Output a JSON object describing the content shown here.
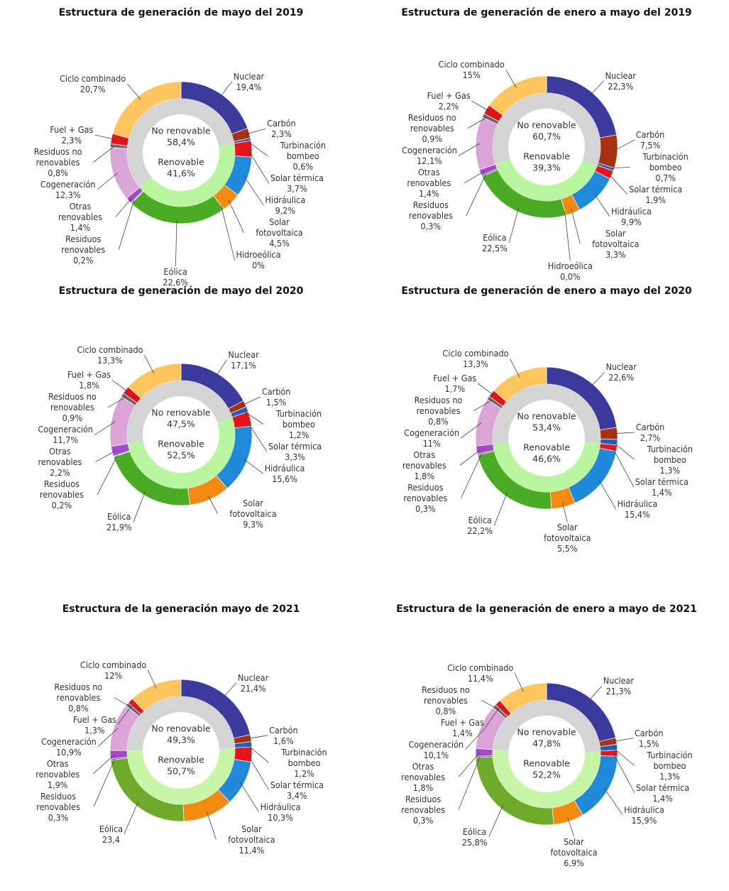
{
  "chart_data": [
    {
      "type": "donut",
      "title": "Estructura de generación de mayo del 2019",
      "categories": [
        "Nuclear",
        "Carbón",
        "Turbinación bombeo",
        "Solar térmica",
        "Hidráulica",
        "Solar fotovoltaica",
        "Hidroeólica",
        "Eólica",
        "Residuos renovables",
        "Otras renovables",
        "Cogeneración",
        "Residuos no renovables",
        "Fuel + Gas",
        "Ciclo combinado"
      ],
      "values": [
        19.4,
        2.3,
        0.6,
        3.7,
        9.2,
        4.5,
        0,
        22.6,
        0.2,
        1.4,
        12.3,
        0.8,
        2.3,
        20.7
      ],
      "value_labels": [
        "19,4%",
        "2,3%",
        "0,6%",
        "3,7%",
        "9,2%",
        "4,5%",
        "0%",
        "22,6%",
        "0,2%",
        "1,4%",
        "12,3%",
        "0,8%",
        "2,3%",
        "20,7%"
      ],
      "colors": [
        "#3d3a9e",
        "#a8320f",
        "#1d5fc9",
        "#e8141c",
        "#1f8ad8",
        "#f28a12",
        "#2e9fa0",
        "#4bab26",
        "#6a4aa3",
        "#a24ac8",
        "#dba4d6",
        "#666666",
        "#e0141c",
        "#fcc55e"
      ],
      "inner": {
        "categories": [
          "No renovable",
          "Renovable"
        ],
        "values": [
          58.4,
          41.6
        ],
        "value_labels": [
          "58,4%",
          "41,6%"
        ],
        "colors": [
          "#d4d4d4",
          "#baf5a0"
        ]
      }
    },
    {
      "type": "donut",
      "title": "Estructura de generación de enero a mayo del 2019",
      "categories": [
        "Nuclear",
        "Carbón",
        "Turbinación bombeo",
        "Solar térmica",
        "Hidráulica",
        "Solar fotovoltaica",
        "Hidroeólica",
        "Eólica",
        "Residuos renovables",
        "Otras renovables",
        "Cogeneración",
        "Residuos no renovables",
        "Fuel + Gas",
        "Ciclo combinado"
      ],
      "values": [
        22.3,
        7.5,
        0.7,
        1.9,
        9.9,
        3.3,
        0.0,
        22.5,
        0.3,
        1.4,
        12.1,
        0.9,
        2.2,
        15
      ],
      "value_labels": [
        "22,3%",
        "7,5%",
        "0,7%",
        "1,9%",
        "9,9%",
        "3,3%",
        "0,0%",
        "22,5%",
        "0,3%",
        "1,4%",
        "12,1%",
        "0,9%",
        "2,2%",
        "15%"
      ],
      "colors": [
        "#3d3a9e",
        "#a8320f",
        "#1d5fc9",
        "#e8141c",
        "#1f8ad8",
        "#f28a12",
        "#2e9fa0",
        "#4bab26",
        "#6a4aa3",
        "#a24ac8",
        "#dba4d6",
        "#666666",
        "#e0141c",
        "#fcc55e"
      ],
      "inner": {
        "categories": [
          "No renovable",
          "Renovable"
        ],
        "values": [
          60.7,
          39.3
        ],
        "value_labels": [
          "60,7%",
          "39,3%"
        ],
        "colors": [
          "#d4d4d4",
          "#baf5a0"
        ]
      }
    },
    {
      "type": "donut",
      "title": "Estructura de generación de mayo del 2020",
      "categories": [
        "Nuclear",
        "Carbón",
        "Turbinación bombeo",
        "Solar térmica",
        "Hidráulica",
        "Solar fotovoltaica",
        "Eólica",
        "Residuos renovables",
        "Otras renovables",
        "Cogeneración",
        "Residuos no renovables",
        "Fuel + Gas",
        "Ciclo combinado"
      ],
      "values": [
        17.1,
        1.5,
        1.2,
        3.3,
        15.6,
        9.3,
        21.9,
        0.2,
        2.2,
        11.7,
        0.9,
        1.8,
        13.3
      ],
      "value_labels": [
        "17,1%",
        "1,5%",
        "1,2%",
        "3,3%",
        "15,6%",
        "9,3%",
        "21,9%",
        "0,2%",
        "2,2%",
        "11,7%",
        "0,9%",
        "1,8%",
        "13,3%"
      ],
      "colors": [
        "#3d3a9e",
        "#a8320f",
        "#1d5fc9",
        "#e8141c",
        "#1f8ad8",
        "#f28a12",
        "#4bab26",
        "#6a4aa3",
        "#a24ac8",
        "#dba4d6",
        "#666666",
        "#e0141c",
        "#fcc55e"
      ],
      "inner": {
        "categories": [
          "No renovable",
          "Renovable"
        ],
        "values": [
          47.5,
          52.5
        ],
        "value_labels": [
          "47,5%",
          "52,5%"
        ],
        "colors": [
          "#d4d4d4",
          "#baf5a0"
        ]
      }
    },
    {
      "type": "donut",
      "title": "Estructura de generación de enero a mayo del 2020",
      "categories": [
        "Nuclear",
        "Carbón",
        "Turbinación bombeo",
        "Solar térmica",
        "Hidráulica",
        "Solar fotovoltaica",
        "Eólica",
        "Residuos renovables",
        "Otras renovables",
        "Cogeneración",
        "Residuos no renovables",
        "Fuel + Gas",
        "Ciclo combinado"
      ],
      "values": [
        22.6,
        2.7,
        1.3,
        1.4,
        15.4,
        5.5,
        22.2,
        0.3,
        1.8,
        11,
        0.8,
        1.7,
        13.3
      ],
      "value_labels": [
        "22,6%",
        "2,7%",
        "1,3%",
        "1,4%",
        "15,4%",
        "5,5%",
        "22,2%",
        "0,3%",
        "1,8%",
        "11%",
        "0,8%",
        "1,7%",
        "13,3%"
      ],
      "colors": [
        "#3d3a9e",
        "#a8320f",
        "#1d5fc9",
        "#e8141c",
        "#1f8ad8",
        "#f28a12",
        "#4bab26",
        "#6a4aa3",
        "#a24ac8",
        "#dba4d6",
        "#666666",
        "#e0141c",
        "#fcc55e"
      ],
      "inner": {
        "categories": [
          "No renovable",
          "Renovable"
        ],
        "values": [
          53.4,
          46.6
        ],
        "value_labels": [
          "53,4%",
          "46,6%"
        ],
        "colors": [
          "#d4d4d4",
          "#baf5a0"
        ]
      }
    },
    {
      "type": "donut",
      "title": "Estructura de la generación mayo de 2021",
      "categories": [
        "Nuclear",
        "Carbón",
        "Turbinación bombeo",
        "Solar térmica",
        "Hidráulica",
        "Solar fotovoltaica",
        "Eólica",
        "Residuos renovables",
        "Otras renovables",
        "Cogeneración",
        "Residuos no renovables",
        "Fuel + Gas",
        "Ciclo combinado"
      ],
      "values": [
        21.4,
        1.6,
        1.2,
        3.4,
        10.3,
        11.4,
        23.4,
        0.3,
        1.9,
        10.9,
        0.8,
        1.3,
        12
      ],
      "value_labels": [
        "21,4%",
        "1,6%",
        "1,2%",
        "3,4%",
        "10,3%",
        "11,4%",
        "23,4",
        "0,3%",
        "1,9%",
        "10,9%",
        "0,8%",
        "1,3%",
        "12%"
      ],
      "colors": [
        "#3d3a9e",
        "#a8320f",
        "#1d5fc9",
        "#e8141c",
        "#1f8ad8",
        "#f28a12",
        "#6fab2a",
        "#6a4aa3",
        "#a24ac8",
        "#dba4d6",
        "#666666",
        "#e0141c",
        "#fcc55e"
      ],
      "inner": {
        "categories": [
          "No renovable",
          "Renovable"
        ],
        "values": [
          49.3,
          50.7
        ],
        "value_labels": [
          "49,3%",
          "50,7%"
        ],
        "colors": [
          "#d4d4d4",
          "#c8f5a8"
        ]
      }
    },
    {
      "type": "donut",
      "title": "Estructura de la generación de enero a mayo de 2021",
      "categories": [
        "Nuclear",
        "Carbón",
        "Turbinación bombeo",
        "Solar térmica",
        "Hidráulica",
        "Solar fotovoltaica",
        "Eólica",
        "Residuos renovables",
        "Otras renovables",
        "Cogeneración",
        "Residuos no renovables",
        "Fuel + Gas",
        "Ciclo combinado"
      ],
      "values": [
        21.3,
        1.5,
        1.3,
        1.4,
        15.9,
        6.9,
        25.8,
        0.3,
        1.8,
        10.1,
        0.8,
        1.4,
        11.4
      ],
      "value_labels": [
        "21,3%",
        "1,5%",
        "1,3%",
        "1,4%",
        "15,9%",
        "6,9%",
        "25,8%",
        "0,3%",
        "1,8%",
        "10,1%",
        "0,8%",
        "1,4%",
        "11,4%"
      ],
      "colors": [
        "#3d3a9e",
        "#a8320f",
        "#1d5fc9",
        "#e8141c",
        "#1f8ad8",
        "#f28a12",
        "#6fab2a",
        "#6a4aa3",
        "#a24ac8",
        "#dba4d6",
        "#666666",
        "#e0141c",
        "#fcc55e"
      ],
      "inner": {
        "categories": [
          "No renovable",
          "Renovable"
        ],
        "values": [
          47.8,
          52.2
        ],
        "value_labels": [
          "47,8%",
          "52,2%"
        ],
        "colors": [
          "#d4d4d4",
          "#c8f5a8"
        ]
      }
    }
  ]
}
